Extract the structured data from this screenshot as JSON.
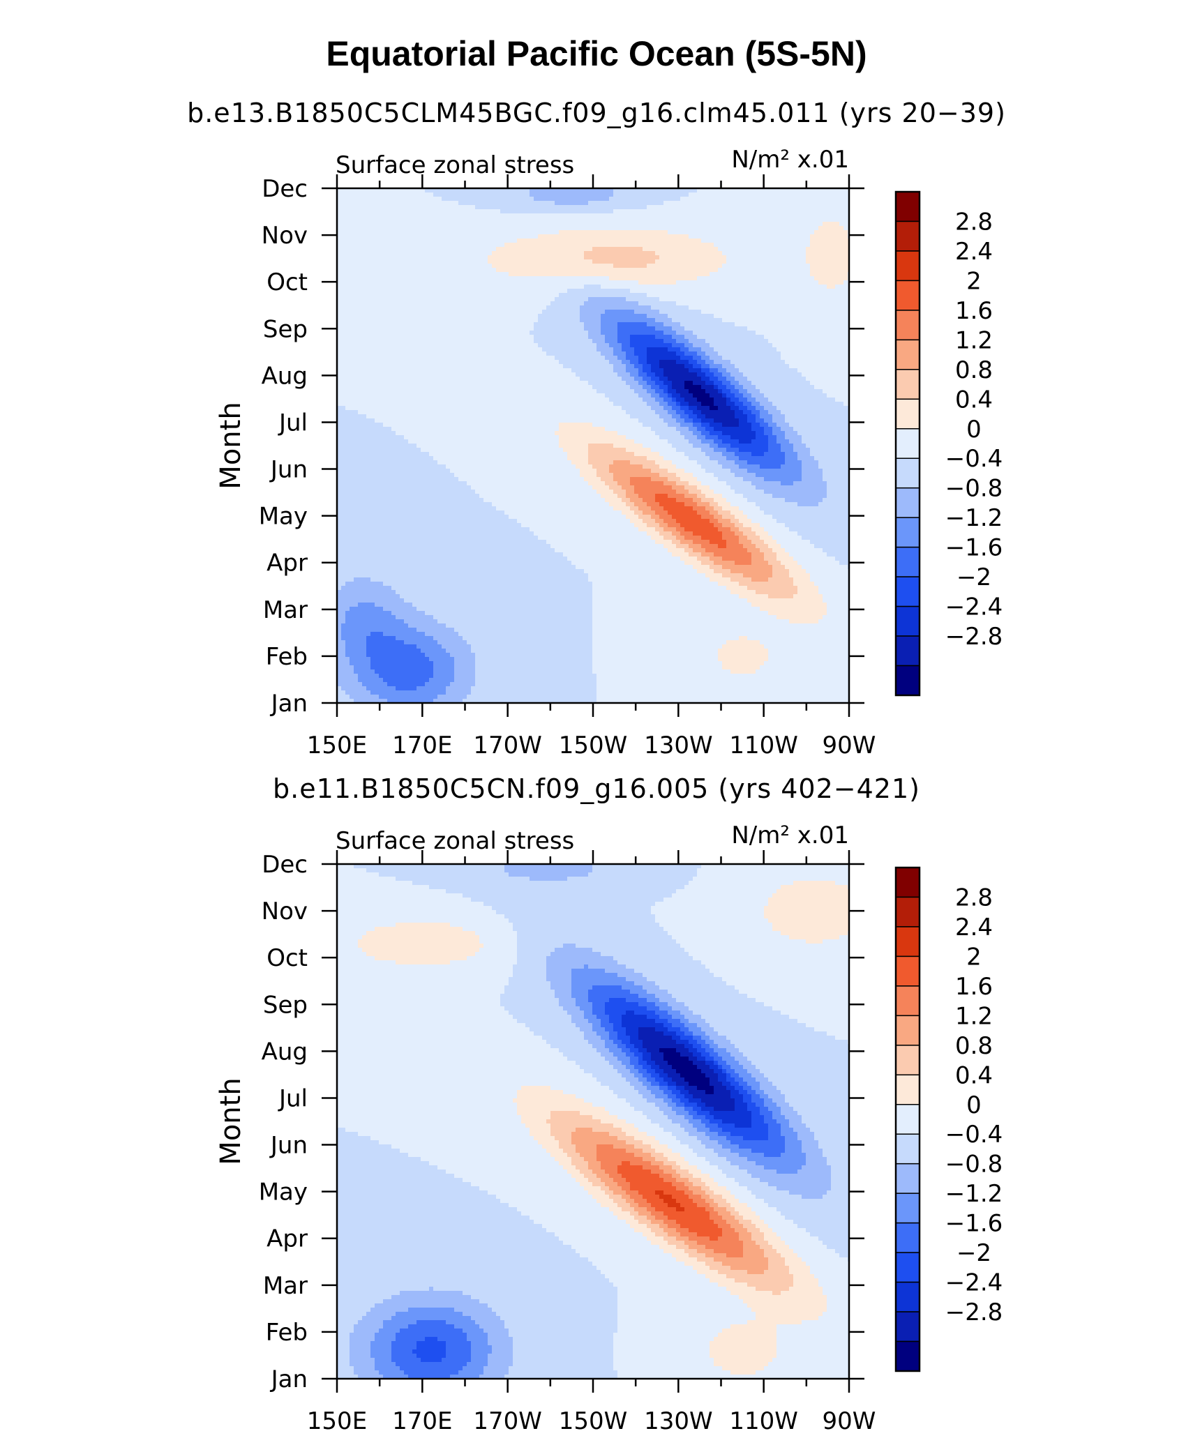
{
  "figure": {
    "title": "Equatorial Pacific Ocean (5S-5N)"
  },
  "colors": [
    "#00007f",
    "#0a1fb3",
    "#0d34d6",
    "#1e4ff0",
    "#3d6ef7",
    "#6b96fa",
    "#9dbafb",
    "#c6dafc",
    "#e3eefd",
    "#fde9d9",
    "#fbcbb0",
    "#f9a882",
    "#f5835a",
    "#f05a2e",
    "#d9370f",
    "#b31e08",
    "#800000"
  ],
  "chart_data": [
    {
      "type": "heatmap",
      "subtitle": "b.e13.B1850C5CLM45BGC.f09_g16.clm45.011 (yrs 20−39)",
      "left_label": "Surface zonal stress",
      "right_label": "N/m² x.01",
      "ylabel": "Month",
      "xlabel": "",
      "x_ticks": [
        "150E",
        "170E",
        "170W",
        "150W",
        "130W",
        "110W",
        "90W"
      ],
      "y_ticks": [
        "Jan",
        "Feb",
        "Mar",
        "Apr",
        "May",
        "Jun",
        "Jul",
        "Aug",
        "Sep",
        "Oct",
        "Nov",
        "Dec"
      ],
      "xlim": [
        150,
        270
      ],
      "ylim": [
        1,
        12
      ],
      "features": [
        {
          "type": "neg",
          "x": 235,
          "y": 7.6,
          "v": 2.9,
          "sx": 21,
          "sy": 0.85,
          "tilt": -0.07
        },
        {
          "type": "pos",
          "x": 233,
          "y": 4.9,
          "v": 2.25,
          "sx": 24,
          "sy": 0.75,
          "tilt": -0.06
        },
        {
          "type": "neg",
          "x": 167,
          "y": 1.7,
          "v": 1.4,
          "sx": 14,
          "sy": 1.0,
          "tilt": 0
        },
        {
          "type": "neg",
          "x": 156,
          "y": 2.8,
          "v": 0.8,
          "sx": 10,
          "sy": 1.0,
          "tilt": 0
        },
        {
          "type": "pos",
          "x": 213,
          "y": 10.5,
          "v": 0.95,
          "sx": 30,
          "sy": 0.7,
          "tilt": 0
        },
        {
          "type": "neg",
          "x": 205,
          "y": 11.9,
          "v": 0.7,
          "sx": 14,
          "sy": 0.35,
          "tilt": 0
        },
        {
          "type": "pos",
          "x": 266,
          "y": 10.6,
          "v": 0.55,
          "sx": 8,
          "sy": 1.2,
          "tilt": 0
        },
        {
          "type": "pos",
          "x": 245,
          "y": 2.0,
          "v": 0.5,
          "sx": 12,
          "sy": 0.8,
          "tilt": 0
        }
      ]
    },
    {
      "type": "heatmap",
      "subtitle": "b.e11.B1850C5CN.f09_g16.005 (yrs 402−421)",
      "left_label": "Surface zonal stress",
      "right_label": "N/m² x.01",
      "ylabel": "Month",
      "xlabel": "",
      "x_ticks": [
        "150E",
        "170E",
        "170W",
        "150W",
        "130W",
        "110W",
        "90W"
      ],
      "y_ticks": [
        "Jan",
        "Feb",
        "Mar",
        "Apr",
        "May",
        "Jun",
        "Jul",
        "Aug",
        "Sep",
        "Oct",
        "Nov",
        "Dec"
      ],
      "xlim": [
        150,
        270
      ],
      "ylim": [
        1,
        12
      ],
      "features": [
        {
          "type": "neg",
          "x": 232,
          "y": 7.6,
          "v": 3.0,
          "sx": 24,
          "sy": 0.95,
          "tilt": -0.07
        },
        {
          "type": "pos",
          "x": 228,
          "y": 4.8,
          "v": 2.45,
          "sx": 27,
          "sy": 0.85,
          "tilt": -0.06
        },
        {
          "type": "neg",
          "x": 172,
          "y": 1.6,
          "v": 1.7,
          "sx": 16,
          "sy": 1.1,
          "tilt": 0
        },
        {
          "type": "pos",
          "x": 170,
          "y": 10.3,
          "v": 0.7,
          "sx": 20,
          "sy": 0.6,
          "tilt": 0
        },
        {
          "type": "neg",
          "x": 200,
          "y": 11.9,
          "v": 0.6,
          "sx": 16,
          "sy": 0.35,
          "tilt": 0
        },
        {
          "type": "pos",
          "x": 262,
          "y": 11.0,
          "v": 0.8,
          "sx": 14,
          "sy": 0.8,
          "tilt": 0
        },
        {
          "type": "pos",
          "x": 245,
          "y": 1.6,
          "v": 0.6,
          "sx": 12,
          "sy": 0.8,
          "tilt": 0
        }
      ]
    }
  ],
  "colorbar": {
    "labels": [
      "2.8",
      "2.4",
      "2",
      "1.6",
      "1.2",
      "0.8",
      "0.4",
      "0",
      "−0.4",
      "−0.8",
      "−1.2",
      "−1.6",
      "−2",
      "−2.4",
      "−2.8"
    ],
    "levels": [
      2.8,
      2.4,
      2.0,
      1.6,
      1.2,
      0.8,
      0.4,
      0,
      -0.4,
      -0.8,
      -1.2,
      -1.6,
      -2.0,
      -2.4,
      -2.8
    ]
  }
}
